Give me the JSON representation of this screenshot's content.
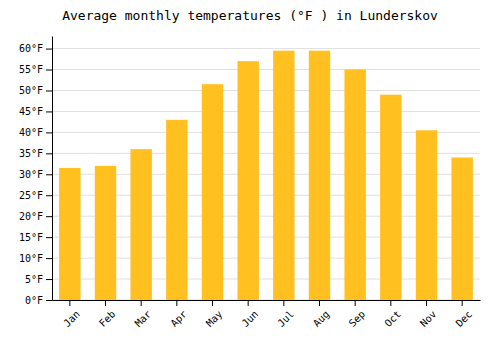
{
  "chart_data": {
    "type": "bar",
    "title": "Average monthly temperatures (°F ) in Lunderskov",
    "categories": [
      "Jan",
      "Feb",
      "Mar",
      "Apr",
      "May",
      "Jun",
      "Jul",
      "Aug",
      "Sep",
      "Oct",
      "Nov",
      "Dec"
    ],
    "values": [
      31.5,
      32.0,
      36.0,
      43.0,
      51.5,
      57.0,
      59.5,
      59.5,
      55.0,
      49.0,
      40.5,
      34.0
    ],
    "color": "#FFC020",
    "ylim": [
      0,
      63
    ],
    "yticks": [
      {
        "value": 0,
        "label": "0°F"
      },
      {
        "value": 5,
        "label": "5°F"
      },
      {
        "value": 10,
        "label": "10°F"
      },
      {
        "value": 15,
        "label": "15°F"
      },
      {
        "value": 20,
        "label": "20°F"
      },
      {
        "value": 25,
        "label": "25°F"
      },
      {
        "value": 30,
        "label": "30°F"
      },
      {
        "value": 35,
        "label": "35°F"
      },
      {
        "value": 40,
        "label": "40°F"
      },
      {
        "value": 45,
        "label": "45°F"
      },
      {
        "value": 50,
        "label": "50°F"
      },
      {
        "value": 55,
        "label": "55°F"
      },
      {
        "value": 60,
        "label": "60°F"
      }
    ],
    "grid": true
  }
}
